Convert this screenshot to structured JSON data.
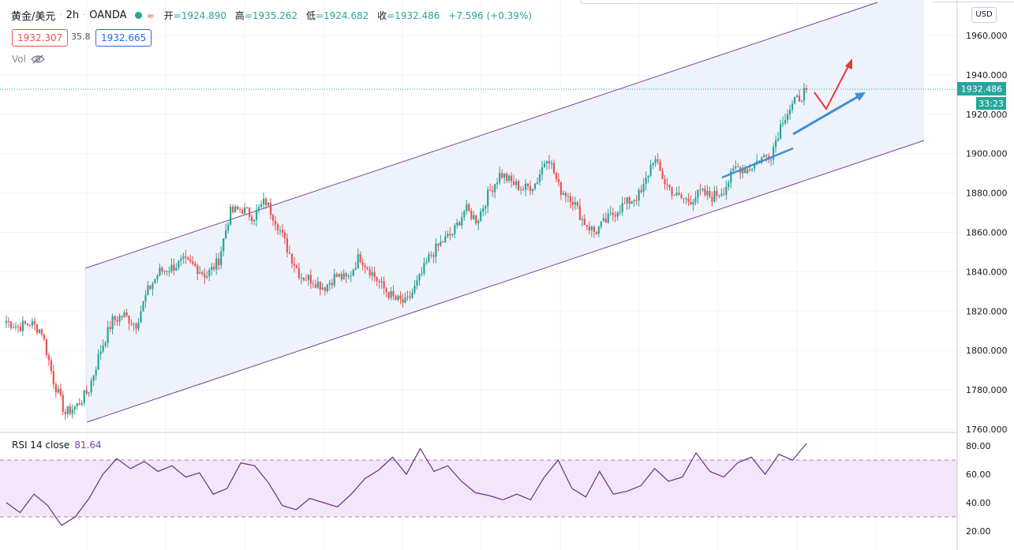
{
  "header": {
    "symbol": "黄金/美元",
    "interval": "2h",
    "broker": "OANDA",
    "wave_icon": "≈",
    "open_label": "开",
    "open": "=1924.890",
    "high_label": "高",
    "high": "=1935.262",
    "low_label": "低",
    "low": "=1924.682",
    "close_label": "收",
    "close": "=1932.486",
    "change": "+7.596 (+0.39%)"
  },
  "quote": {
    "sell": "1932.307",
    "spread": "35.8",
    "buy": "1932.665"
  },
  "volume_label": "Vol",
  "currency": "USD",
  "rsi": {
    "label": "RSI 14 close",
    "value": "81.64"
  },
  "price_tag": {
    "value": "1932.486",
    "countdown": "33:23"
  },
  "colors": {
    "up": "#26a69a",
    "down": "#ef5350",
    "channel": "#7b3fa0",
    "channel_fill": "#eef3fb",
    "rsi_line": "#6a2c86",
    "rsi_band": "#f4e6fa",
    "arrow_blue": "#3d8fd6",
    "arrow_red": "#e53935"
  },
  "chart_data": [
    {
      "type": "candlestick",
      "title": "",
      "ylim": [
        1760,
        1970
      ],
      "y_ticks": [
        "1760.000",
        "1780.000",
        "1800.000",
        "1820.000",
        "1840.000",
        "1860.000",
        "1880.000",
        "1900.000",
        "1920.000",
        "1940.000",
        "1960.000"
      ],
      "last_price": 1932.486,
      "series": [
        {
          "key_prices": [
            1815,
            1812,
            1814,
            1810,
            1785,
            1768,
            1772,
            1780,
            1800,
            1815,
            1818,
            1813,
            1830,
            1840,
            1842,
            1845,
            1843,
            1838,
            1845,
            1870,
            1872,
            1868,
            1876,
            1865,
            1850,
            1838,
            1836,
            1832,
            1838,
            1836,
            1848,
            1840,
            1832,
            1826,
            1824,
            1835,
            1848,
            1855,
            1860,
            1872,
            1866,
            1880,
            1890,
            1885,
            1882,
            1885,
            1900,
            1882,
            1878,
            1866,
            1860,
            1866,
            1872,
            1876,
            1880,
            1898,
            1885,
            1878,
            1876,
            1880,
            1878,
            1882,
            1893,
            1892,
            1897,
            1900,
            1918,
            1926,
            1932.486
          ]
        }
      ],
      "annotations": [
        "ascending channel",
        "blue arrow up",
        "red arrow up"
      ]
    },
    {
      "type": "line",
      "title": "RSI 14 close",
      "ylim": [
        15,
        85
      ],
      "y_ticks": [
        "20.00",
        "40.00",
        "60.00",
        "80.00"
      ],
      "bands": [
        30,
        70
      ],
      "values": [
        40,
        33,
        46,
        38,
        24,
        30,
        43,
        60,
        71,
        64,
        69,
        62,
        66,
        58,
        61,
        46,
        50,
        68,
        66,
        54,
        38,
        35,
        43,
        40,
        37,
        46,
        57,
        63,
        72,
        60,
        78,
        62,
        66,
        55,
        47,
        45,
        42,
        46,
        42,
        58,
        70,
        50,
        44,
        62,
        46,
        48,
        52,
        64,
        55,
        58,
        75,
        62,
        58,
        68,
        72,
        60,
        74,
        70,
        81.64
      ]
    }
  ]
}
